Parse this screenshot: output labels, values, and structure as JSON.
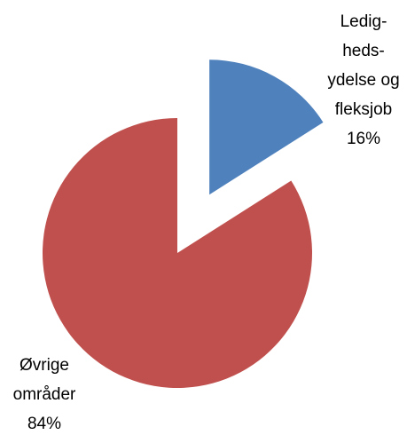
{
  "chart_data": {
    "type": "pie",
    "categories": [
      "Ledig-\nheds-\nydelse og\nfleksjob",
      "Øvrige\nområder"
    ],
    "values": [
      16,
      84
    ],
    "value_labels": [
      "16%",
      "84%"
    ],
    "colors": [
      "#4f81bd",
      "#c0504d"
    ],
    "exploded": [
      true,
      false
    ]
  }
}
